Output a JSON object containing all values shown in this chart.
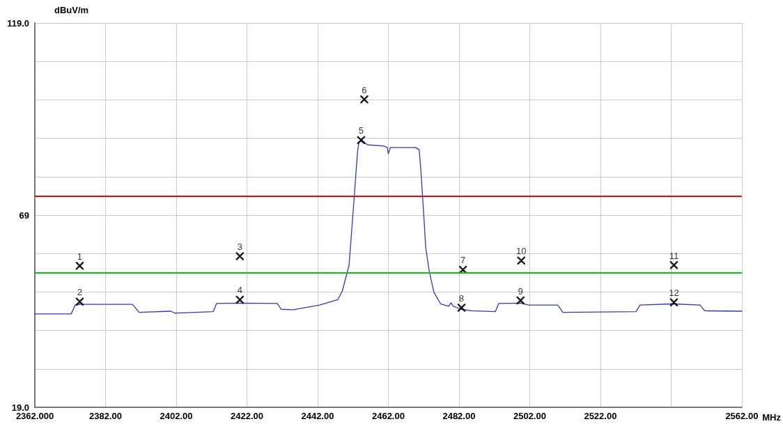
{
  "chart_data": {
    "type": "line",
    "xlabel": "MHz",
    "ylabel": "dBuV/m",
    "xlim": [
      2362,
      2562
    ],
    "xticks": [
      {
        "value": 2362,
        "label": "2362.000"
      },
      {
        "value": 2382,
        "label": "2382.00"
      },
      {
        "value": 2402,
        "label": "2402.00"
      },
      {
        "value": 2422,
        "label": "2422.00"
      },
      {
        "value": 2442,
        "label": "2442.00"
      },
      {
        "value": 2462,
        "label": "2462.00"
      },
      {
        "value": 2482,
        "label": "2482.00"
      },
      {
        "value": 2502,
        "label": "2502.00"
      },
      {
        "value": 2522,
        "label": "2522.00"
      },
      {
        "value": 2542,
        "label": null
      },
      {
        "value": 2562,
        "label": "2562.00"
      }
    ],
    "ylim": [
      19,
      119
    ],
    "yticks": [
      {
        "value": 19,
        "label": "19.0"
      },
      {
        "value": 29,
        "label": null
      },
      {
        "value": 39,
        "label": null
      },
      {
        "value": 49,
        "label": null
      },
      {
        "value": 59,
        "label": null
      },
      69,
      {
        "value": 79,
        "label": null
      },
      {
        "value": 89,
        "label": null
      },
      {
        "value": 99,
        "label": null
      },
      {
        "value": 109,
        "label": null
      },
      {
        "value": 119,
        "label": "119.0"
      }
    ],
    "grid": true,
    "series": [
      {
        "color": "#3333cc",
        "marker": "none",
        "line_style": "solid",
        "x": [
          2362,
          2372.3,
          2373.4,
          2374.9,
          2389.6,
          2391.5,
          2400.5,
          2401.6,
          2412.5,
          2413.4,
          2420.0,
          2430.6,
          2431.7,
          2435.1,
          2442.6,
          2447.7,
          2449.0,
          2450.9,
          2452.4,
          2453.3,
          2453.7,
          2454.5,
          2456.1,
          2460.6,
          2461.7,
          2462.0,
          2462.6,
          2469.7,
          2470.7,
          2471.1,
          2471.7,
          2472.6,
          2473.6,
          2474.9,
          2476.8,
          2479.1,
          2479.7,
          2480.4,
          2482.6,
          2485.5,
          2492.3,
          2493.2,
          2499.4,
          2501.7,
          2509.9,
          2511.4,
          2532.1,
          2533.2,
          2542.6,
          2550.2,
          2551.5,
          2562
        ],
        "values": [
          43.3,
          43.3,
          45.6,
          45.8,
          45.8,
          43.7,
          44.0,
          43.5,
          43.9,
          46.0,
          46.1,
          46.0,
          44.5,
          44.4,
          45.6,
          47.0,
          49.3,
          56.0,
          74.3,
          85.6,
          88.0,
          88.5,
          87.3,
          87.0,
          86.6,
          85.0,
          86.6,
          86.6,
          86.0,
          82.1,
          73.7,
          60.4,
          54.3,
          48.9,
          45.9,
          45.3,
          46.2,
          45.3,
          44.5,
          44.1,
          43.9,
          46.0,
          46.1,
          45.6,
          45.6,
          43.7,
          43.9,
          45.6,
          45.9,
          45.6,
          44.1,
          44.0
        ]
      },
      {
        "type": "scatter",
        "color": "#000000",
        "marker": "cross",
        "x": [
          2374.7,
          2374.7,
          2420.0,
          2420.0,
          2454.3,
          2455.2,
          2483.1,
          2482.7,
          2499.4,
          2499.6,
          2542.8,
          2542.8
        ],
        "values": [
          55.8,
          46.5,
          58.3,
          47.0,
          88.5,
          99.1,
          54.8,
          44.9,
          46.8,
          57.2,
          56.0,
          46.3
        ]
      }
    ],
    "ref_lines": [
      {
        "axis": "y",
        "value": 74,
        "color": "#ff0000",
        "line_style": "solid"
      },
      {
        "axis": "y",
        "value": 54,
        "color": "#00cc00",
        "line_style": "solid"
      }
    ],
    "annotations": [
      {
        "text": "1",
        "x": 2374.7,
        "y": 55.8
      },
      {
        "text": "2",
        "x": 2374.7,
        "y": 46.5
      },
      {
        "text": "3",
        "x": 2420.0,
        "y": 58.3
      },
      {
        "text": "4",
        "x": 2420.0,
        "y": 47.0
      },
      {
        "text": "5",
        "x": 2454.3,
        "y": 88.5
      },
      {
        "text": "6",
        "x": 2455.2,
        "y": 99.1
      },
      {
        "text": "7",
        "x": 2483.1,
        "y": 54.8
      },
      {
        "text": "8",
        "x": 2482.7,
        "y": 44.9
      },
      {
        "text": "9",
        "x": 2499.4,
        "y": 46.8
      },
      {
        "text": "10",
        "x": 2499.6,
        "y": 57.2
      },
      {
        "text": "11",
        "x": 2542.8,
        "y": 56.0
      },
      {
        "text": "12",
        "x": 2542.8,
        "y": 46.3
      }
    ]
  }
}
